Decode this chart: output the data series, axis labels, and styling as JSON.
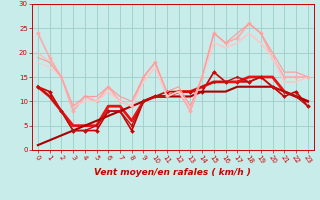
{
  "xlabel": "Vent moyen/en rafales ( km/h )",
  "xlim": [
    -0.5,
    23.5
  ],
  "ylim": [
    0,
    30
  ],
  "xticks": [
    0,
    1,
    2,
    3,
    4,
    5,
    6,
    7,
    8,
    9,
    10,
    11,
    12,
    13,
    14,
    15,
    16,
    17,
    18,
    19,
    20,
    21,
    22,
    23
  ],
  "yticks": [
    0,
    5,
    10,
    15,
    20,
    25,
    30
  ],
  "bg_color": "#c8ecea",
  "grid_color": "#9ececa",
  "lines": [
    {
      "x": [
        0,
        1,
        2,
        3,
        4,
        5,
        6,
        7,
        8,
        9,
        10,
        11,
        12,
        13,
        14,
        15,
        16,
        17,
        18,
        19,
        20,
        21,
        22,
        23
      ],
      "y": [
        13,
        12,
        8,
        4,
        4,
        4,
        8,
        8,
        4,
        10,
        11,
        12,
        12,
        12,
        12,
        16,
        14,
        14,
        14,
        15,
        13,
        11,
        12,
        9
      ],
      "color": "#cc0000",
      "lw": 1.2,
      "marker": "D",
      "ms": 2.0
    },
    {
      "x": [
        0,
        1,
        2,
        3,
        4,
        5,
        6,
        7,
        8,
        9,
        10,
        11,
        12,
        13,
        14,
        15,
        16,
        17,
        18,
        19,
        20,
        21,
        22,
        23
      ],
      "y": [
        13,
        11,
        8,
        5,
        5,
        5,
        9,
        9,
        6,
        10,
        11,
        11,
        12,
        12,
        13,
        14,
        14,
        14,
        15,
        15,
        15,
        12,
        11,
        10
      ],
      "color": "#ee1111",
      "lw": 2.0,
      "marker": null,
      "ms": 0
    },
    {
      "x": [
        0,
        1,
        2,
        3,
        4,
        5,
        6,
        7,
        8,
        9,
        10,
        11,
        12,
        13,
        14,
        15,
        16,
        17,
        18,
        19,
        20,
        21,
        22,
        23
      ],
      "y": [
        1,
        2,
        3,
        4,
        5,
        6,
        7,
        8,
        9,
        10,
        11,
        11,
        11,
        11,
        12,
        12,
        12,
        13,
        13,
        13,
        13,
        12,
        11,
        10
      ],
      "color": "#aa0000",
      "lw": 1.5,
      "marker": null,
      "ms": 0
    },
    {
      "x": [
        0,
        1,
        2,
        3,
        4,
        5,
        6,
        7,
        8,
        9,
        10,
        11,
        12,
        13,
        14,
        15,
        16,
        17,
        18,
        19,
        20,
        21,
        22,
        23
      ],
      "y": [
        13,
        11,
        8,
        4,
        4,
        5,
        8,
        8,
        5,
        10,
        11,
        11,
        12,
        12,
        13,
        14,
        14,
        15,
        14,
        15,
        13,
        12,
        11,
        9
      ],
      "color": "#bb1111",
      "lw": 1.0,
      "marker": "D",
      "ms": 1.5
    },
    {
      "x": [
        0,
        1,
        2,
        3,
        4,
        5,
        6,
        7,
        8,
        9,
        10,
        11,
        12,
        13,
        14,
        15,
        16,
        17,
        18,
        19,
        20,
        21,
        22,
        23
      ],
      "y": [
        24,
        19,
        15,
        8,
        11,
        10,
        13,
        10,
        9,
        15,
        18,
        11,
        12,
        8,
        15,
        24,
        22,
        23,
        26,
        24,
        19,
        15,
        15,
        15
      ],
      "color": "#ffaaaa",
      "lw": 1.2,
      "marker": "D",
      "ms": 2.0
    },
    {
      "x": [
        0,
        1,
        2,
        3,
        4,
        5,
        6,
        7,
        8,
        9,
        10,
        11,
        12,
        13,
        14,
        15,
        16,
        17,
        18,
        19,
        20,
        21,
        22,
        23
      ],
      "y": [
        20,
        18,
        15,
        9,
        10,
        10,
        12,
        10,
        9,
        14,
        17,
        11,
        12,
        9,
        15,
        22,
        21,
        22,
        24,
        22,
        19,
        14,
        14,
        15
      ],
      "color": "#ffbbbb",
      "lw": 1.0,
      "marker": null,
      "ms": 0
    },
    {
      "x": [
        0,
        1,
        2,
        3,
        4,
        5,
        6,
        7,
        8,
        9,
        10,
        11,
        12,
        13,
        14,
        15,
        16,
        17,
        18,
        19,
        20,
        21,
        22,
        23
      ],
      "y": [
        18,
        17,
        15,
        9,
        10,
        10,
        12,
        10,
        9,
        14,
        17,
        11,
        12,
        9,
        15,
        22,
        21,
        22,
        24,
        22,
        19,
        14,
        14,
        15
      ],
      "color": "#ffcccc",
      "lw": 0.8,
      "marker": null,
      "ms": 0
    },
    {
      "x": [
        0,
        1,
        2,
        3,
        4,
        5,
        6,
        7,
        8,
        9,
        10,
        11,
        12,
        13,
        14,
        15,
        16,
        17,
        18,
        19,
        20,
        21,
        22,
        23
      ],
      "y": [
        19,
        18,
        15,
        9,
        11,
        11,
        13,
        11,
        10,
        15,
        18,
        12,
        13,
        9,
        15,
        24,
        22,
        24,
        26,
        24,
        20,
        16,
        16,
        15
      ],
      "color": "#ff9999",
      "lw": 0.8,
      "marker": null,
      "ms": 0
    }
  ],
  "tick_label_fontsize": 5.0,
  "xlabel_fontsize": 6.5,
  "tick_color": "#cc0000",
  "axis_color": "#cc0000"
}
